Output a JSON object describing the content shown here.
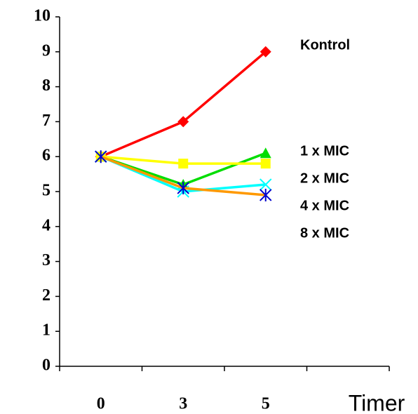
{
  "chart_data": {
    "type": "line",
    "x_label": "Timer",
    "categories": [
      "0",
      "3",
      "5",
      null
    ],
    "series": [
      {
        "name": "Kontrol",
        "color": "#ff0000",
        "marker": "diamond",
        "marker_color": "#ff0000",
        "values": [
          6,
          7,
          9,
          null
        ]
      },
      {
        "name": "1 x MIC",
        "color": "#00dd00",
        "marker": "triangle",
        "marker_color": "#00dd00",
        "values": [
          6,
          5.2,
          6.1,
          null
        ]
      },
      {
        "name": "2 x MIC",
        "color": "#ffff00",
        "marker": "square",
        "marker_color": "#ffff00",
        "values": [
          6,
          5.8,
          5.8,
          null
        ]
      },
      {
        "name": "4 x MIC",
        "color": "#00ffff",
        "marker": "x",
        "marker_color": "#00ffff",
        "values": [
          6,
          5,
          5.2,
          null
        ]
      },
      {
        "name": "8 x MIC",
        "color": "#ff9900",
        "marker": "asterisk",
        "marker_color": "#0000cc",
        "values": [
          6,
          5.1,
          4.9,
          null
        ]
      }
    ],
    "ylim": [
      0,
      10
    ],
    "yticks": [
      0,
      1,
      2,
      3,
      4,
      5,
      6,
      7,
      8,
      9,
      10
    ],
    "grid": false
  }
}
